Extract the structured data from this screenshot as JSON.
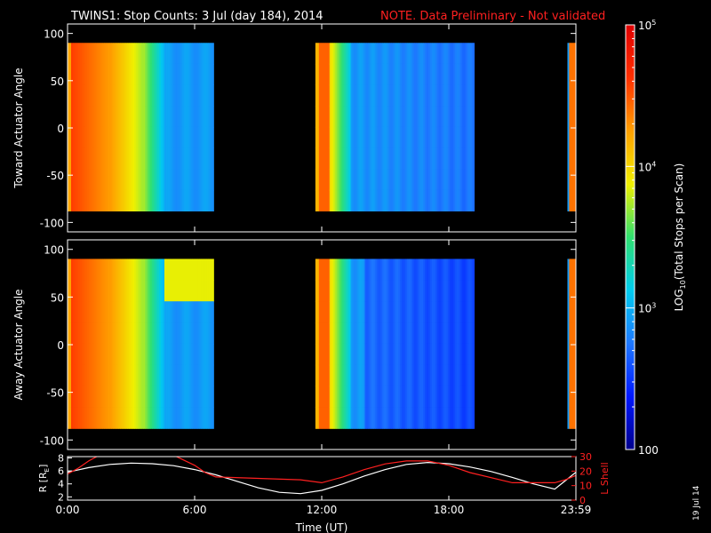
{
  "header": {
    "title": "TWINS1: Stop Counts:  3 Jul (day 184), 2014",
    "note": "NOTE. Data Preliminary - Not validated",
    "note_color": "#ff2020"
  },
  "side_date": "19 Jul 14",
  "colorbar": {
    "label_prefix": "LOG",
    "label_sub": "10",
    "label_suffix": "(Total Stops per Scan)",
    "ticks": [
      {
        "label": "10",
        "sup": "5",
        "value": 100000
      },
      {
        "label": "10",
        "sup": "4",
        "value": 10000
      },
      {
        "label": "10",
        "sup": "3",
        "value": 1000
      },
      {
        "label": "100",
        "sup": "",
        "value": 100
      }
    ],
    "scale": "log",
    "range": [
      100,
      100000
    ],
    "colors": [
      "#00008c",
      "#0018ff",
      "#1e78ff",
      "#00ccee",
      "#30e070",
      "#f0f000",
      "#ffa000",
      "#ff3000",
      "#e00000"
    ]
  },
  "chart_data": [
    {
      "type": "heatmap",
      "name": "toward",
      "ylabel": "Toward Actuator Angle",
      "ylim": [
        -110,
        110
      ],
      "yticks": [
        100,
        50,
        0,
        -50,
        -100
      ],
      "xlim": [
        0,
        24
      ],
      "xticks": [
        {
          "v": 0,
          "label": "0:00"
        },
        {
          "v": 6,
          "label": "6:00"
        },
        {
          "v": 12,
          "label": "12:00"
        },
        {
          "v": 18,
          "label": "18:00"
        },
        {
          "v": 24,
          "label": "23:59"
        }
      ],
      "data_angle_range": [
        -88,
        90
      ],
      "segments": [
        {
          "start": 0.0,
          "end": 6.9
        },
        {
          "start": 11.7,
          "end": 19.2
        },
        {
          "start": 23.6,
          "end": 24.0
        }
      ]
    },
    {
      "type": "heatmap",
      "name": "away",
      "ylabel": "Away Actuator Angle",
      "ylim": [
        -110,
        110
      ],
      "yticks": [
        100,
        50,
        0,
        -50,
        -100
      ],
      "xlim": [
        0,
        24
      ],
      "xticks": [
        {
          "v": 0,
          "label": "0:00"
        },
        {
          "v": 6,
          "label": "6:00"
        },
        {
          "v": 12,
          "label": "12:00"
        },
        {
          "v": 18,
          "label": "18:00"
        },
        {
          "v": 24,
          "label": "23:59"
        }
      ],
      "data_angle_range": [
        -88,
        90
      ],
      "segments": [
        {
          "start": 0.0,
          "end": 6.9
        },
        {
          "start": 11.7,
          "end": 19.2
        },
        {
          "start": 23.6,
          "end": 24.0
        }
      ]
    },
    {
      "type": "line",
      "name": "orbit",
      "xlabel": "Time (UT)",
      "ylabel": "R [RE]",
      "ylabel_text": "R [R",
      "ylabel_sub": "E",
      "ylabel_end": "]",
      "y2label": "L Shell",
      "ylim": [
        1.5,
        8.2
      ],
      "yticks": [
        2,
        4,
        6,
        8
      ],
      "y2lim": [
        0,
        30
      ],
      "y2ticks": [
        0,
        10,
        20,
        30
      ],
      "xlim": [
        0,
        24
      ],
      "xticks": [
        {
          "v": 0,
          "label": "0:00"
        },
        {
          "v": 6,
          "label": "6:00"
        },
        {
          "v": 12,
          "label": "12:00"
        },
        {
          "v": 18,
          "label": "18:00"
        },
        {
          "v": 24,
          "label": "23:59"
        }
      ],
      "series": [
        {
          "color": "#ffffff",
          "axis": "left",
          "x": [
            0,
            1,
            2,
            3,
            4,
            5,
            6,
            7,
            8,
            9,
            10,
            11,
            12,
            13,
            14,
            15,
            16,
            17,
            18,
            19,
            20,
            21,
            22,
            23,
            24
          ],
          "y": [
            5.8,
            6.5,
            7.0,
            7.2,
            7.1,
            6.8,
            6.2,
            5.4,
            4.4,
            3.4,
            2.7,
            2.5,
            3.0,
            4.0,
            5.2,
            6.2,
            7.0,
            7.3,
            7.1,
            6.6,
            5.9,
            5.0,
            4.0,
            3.2,
            5.8
          ]
        },
        {
          "color": "#ff2020",
          "axis": "right",
          "x": [
            0,
            0.5,
            1,
            1.5,
            2,
            4.5,
            5,
            6,
            6.5,
            7,
            9,
            11,
            12,
            13,
            14,
            15,
            16,
            17,
            18,
            19,
            21,
            23,
            23.5,
            24
          ],
          "y": [
            18,
            22,
            27,
            31,
            33,
            33,
            31,
            24,
            19,
            16,
            15,
            14,
            12,
            16,
            21,
            25,
            27,
            27,
            24,
            19,
            12,
            12,
            14,
            17
          ]
        }
      ]
    }
  ]
}
